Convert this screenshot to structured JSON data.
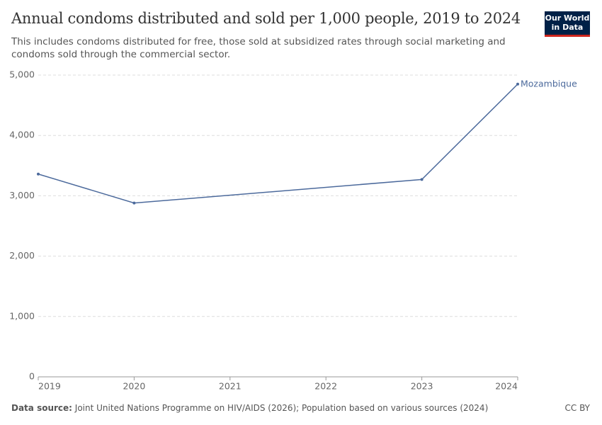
{
  "chart_data": {
    "type": "line",
    "title": "Annual condoms distributed and sold per 1,000 people, 2019 to 2024",
    "subtitle": "This includes condoms distributed for free, those sold at subsidized rates through social marketing and condoms sold through the commercial sector.",
    "x": [
      2019,
      2020,
      2023,
      2024
    ],
    "series": [
      {
        "name": "Mozambique",
        "color": "#4c6a9c",
        "values": [
          3360,
          2880,
          3270,
          4850
        ]
      }
    ],
    "xlim": [
      2019,
      2024
    ],
    "xticks": [
      2019,
      2020,
      2021,
      2022,
      2023,
      2024
    ],
    "ylim": [
      0,
      5000
    ],
    "yticks": [
      0,
      {
        "value": 1000,
        "label": "1,000"
      },
      {
        "value": 2000,
        "label": "2,000"
      },
      {
        "value": 3000,
        "label": "3,000"
      },
      {
        "value": 4000,
        "label": "4,000"
      },
      {
        "value": 5000,
        "label": "5,000"
      }
    ],
    "grid": true
  },
  "footer": {
    "source_label": "Data source:",
    "source_text": "Joint United Nations Programme on HIV/AIDS (2026); Population based on various sources (2024)",
    "license": "CC BY"
  },
  "logo": {
    "line1": "Our World",
    "line2": "in Data"
  }
}
